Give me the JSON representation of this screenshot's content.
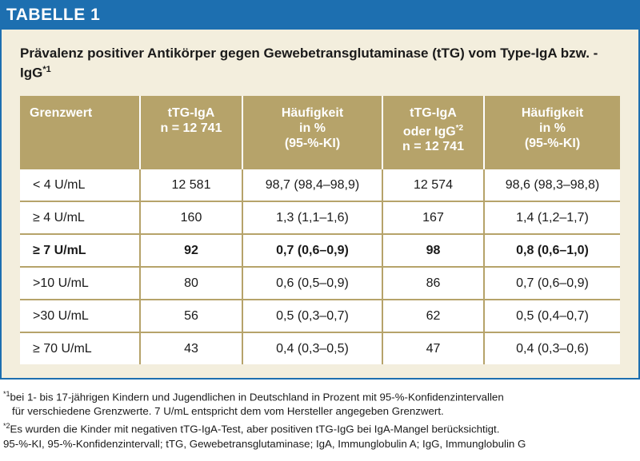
{
  "header": {
    "title": "TABELLE 1"
  },
  "table_title": {
    "text": "Prävalenz positiver Antikörper gegen Gewebetransglutaminase (tTG) vom Type-IgA bzw. -IgG",
    "footnote_marker": "*1"
  },
  "columns": [
    {
      "lines": [
        "Grenzwert"
      ]
    },
    {
      "lines": [
        "tTG-IgA",
        "n = 12 741"
      ]
    },
    {
      "lines": [
        "Häufigkeit",
        "in %",
        "(95-%-KI)"
      ]
    },
    {
      "lines": [
        "tTG-IgA",
        "oder IgG",
        "n = 12 741"
      ],
      "marker": "*2"
    },
    {
      "lines": [
        "Häufigkeit",
        "in %",
        "(95-%-KI)"
      ]
    }
  ],
  "rows": [
    {
      "cells": [
        "< 4 U/mL",
        "12 581",
        "98,7 (98,4–98,9)",
        "12 574",
        "98,6 (98,3–98,8)"
      ],
      "bold": false
    },
    {
      "cells": [
        "≥ 4 U/mL",
        "160",
        "1,3 (1,1–1,6)",
        "167",
        "1,4 (1,2–1,7)"
      ],
      "bold": false
    },
    {
      "cells": [
        "≥ 7 U/mL",
        "92",
        "0,7 (0,6–0,9)",
        "98",
        "0,8 (0,6–1,0)"
      ],
      "bold": true
    },
    {
      "cells": [
        ">10 U/mL",
        "80",
        "0,6 (0,5–0,9)",
        "86",
        "0,7 (0,6–0,9)"
      ],
      "bold": false
    },
    {
      "cells": [
        ">30 U/mL",
        "56",
        "0,5 (0,3–0,7)",
        "62",
        "0,5 (0,4–0,7)"
      ],
      "bold": false
    },
    {
      "cells": [
        "≥ 70 U/mL",
        "43",
        "0,4 (0,3–0,5)",
        "47",
        "0,4 (0,3–0,6)"
      ],
      "bold": false
    }
  ],
  "footnotes": {
    "fn1_marker": "*1",
    "fn1_line1": "bei 1- bis 17-jährigen Kindern und Jugendlichen in Deutschland in Prozent mit 95-%-Konfidenzintervallen",
    "fn1_line2": "für verschiedene Grenzwerte. 7 U/mL entspricht dem vom Hersteller angegeben Grenzwert.",
    "fn2_marker": "*2",
    "fn2_line1": "Es wurden die Kinder mit negativen tTG-IgA-Test, aber positiven tTG-IgG bei IgA-Mangel berücksichtigt.",
    "abbreviations": "95-%-KI, 95-%-Konfidenzintervall; tTG, Gewebetransglutaminase; IgA, Immunglobulin A; IgG, Immunglobulin G"
  },
  "colors": {
    "header_blue": "#1d6fb0",
    "table_header_gold": "#b6a36a",
    "panel_beige": "#f3eedd"
  }
}
